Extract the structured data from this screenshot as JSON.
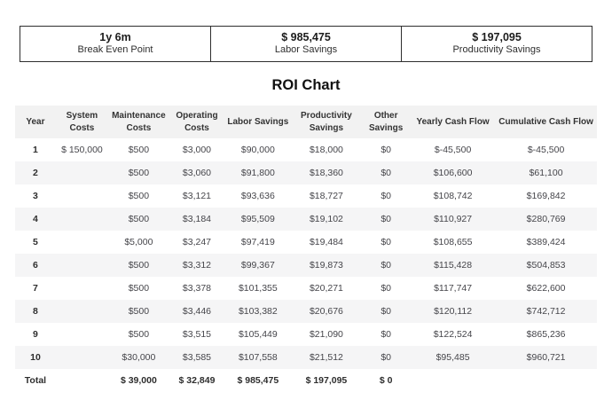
{
  "summary": [
    {
      "value": "1y 6m",
      "label": "Break Even Point"
    },
    {
      "value": "$ 985,475",
      "label": "Labor Savings"
    },
    {
      "value": "$ 197,095",
      "label": "Productivity Savings"
    }
  ],
  "title": "ROI Chart",
  "table": {
    "columns": [
      "Year",
      "System Costs",
      "Maintenance Costs",
      "Operating Costs",
      "Labor Savings",
      "Productivity Savings",
      "Other Savings",
      "Yearly Cash Flow",
      "Cumulative Cash Flow"
    ],
    "rows": [
      [
        "1",
        "$ 150,000",
        "$500",
        "$3,000",
        "$90,000",
        "$18,000",
        "$0",
        "$-45,500",
        "$-45,500"
      ],
      [
        "2",
        "",
        "$500",
        "$3,060",
        "$91,800",
        "$18,360",
        "$0",
        "$106,600",
        "$61,100"
      ],
      [
        "3",
        "",
        "$500",
        "$3,121",
        "$93,636",
        "$18,727",
        "$0",
        "$108,742",
        "$169,842"
      ],
      [
        "4",
        "",
        "$500",
        "$3,184",
        "$95,509",
        "$19,102",
        "$0",
        "$110,927",
        "$280,769"
      ],
      [
        "5",
        "",
        "$5,000",
        "$3,247",
        "$97,419",
        "$19,484",
        "$0",
        "$108,655",
        "$389,424"
      ],
      [
        "6",
        "",
        "$500",
        "$3,312",
        "$99,367",
        "$19,873",
        "$0",
        "$115,428",
        "$504,853"
      ],
      [
        "7",
        "",
        "$500",
        "$3,378",
        "$101,355",
        "$20,271",
        "$0",
        "$117,747",
        "$622,600"
      ],
      [
        "8",
        "",
        "$500",
        "$3,446",
        "$103,382",
        "$20,676",
        "$0",
        "$120,112",
        "$742,712"
      ],
      [
        "9",
        "",
        "$500",
        "$3,515",
        "$105,449",
        "$21,090",
        "$0",
        "$122,524",
        "$865,236"
      ],
      [
        "10",
        "",
        "$30,000",
        "$3,585",
        "$107,558",
        "$21,512",
        "$0",
        "$95,485",
        "$960,721"
      ]
    ],
    "total_row": [
      "Total",
      "",
      "$ 39,000",
      "$ 32,849",
      "$ 985,475",
      "$ 197,095",
      "$ 0",
      "",
      ""
    ]
  },
  "colors": {
    "band_gray": "#f2f2f2",
    "box_border": "#2e2e2e",
    "text": "#3d3d3d"
  }
}
